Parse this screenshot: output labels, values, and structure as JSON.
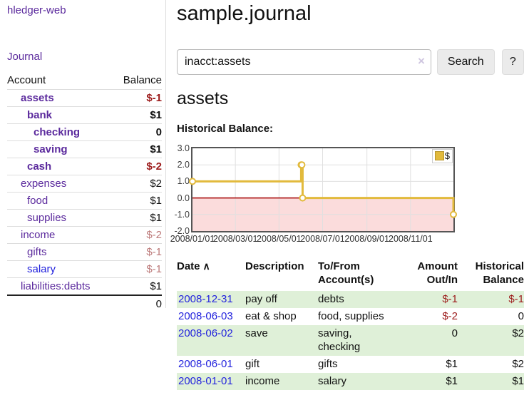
{
  "colors": {
    "link_purple": "#5b2a9d",
    "link_blue": "#2323dd",
    "negative_strong": "#9c1b1b",
    "negative_dim": "#bd7b7b",
    "row_shade_green": "#dff0d8",
    "chart_line_gold": "#e2ba3c",
    "chart_negative_region_pink": "#fbdcdc",
    "chart_zero_line_red": "#a40000"
  },
  "sidebar": {
    "app_title": "hledger-web",
    "journal_label": "Journal",
    "accounts": {
      "headers": [
        "Account",
        "Balance"
      ],
      "rows": [
        {
          "name": "assets",
          "balance": "$-1",
          "indent": 1,
          "bold": true,
          "balance_color": "negative-strong"
        },
        {
          "name": "bank",
          "balance": "$1",
          "indent": 2,
          "bold": true,
          "balance_color": "default"
        },
        {
          "name": "checking",
          "balance": "0",
          "indent": 3,
          "bold": true,
          "balance_color": "default"
        },
        {
          "name": "saving",
          "balance": "$1",
          "indent": 3,
          "bold": true,
          "balance_color": "default"
        },
        {
          "name": "cash",
          "balance": "$-2",
          "indent": 2,
          "bold": true,
          "balance_color": "negative-strong"
        },
        {
          "name": "expenses",
          "balance": "$2",
          "indent": 1,
          "bold": false,
          "balance_color": "default"
        },
        {
          "name": "food",
          "balance": "$1",
          "indent": 2,
          "bold": false,
          "balance_color": "default"
        },
        {
          "name": "supplies",
          "balance": "$1",
          "indent": 2,
          "bold": false,
          "balance_color": "default"
        },
        {
          "name": "income",
          "balance": "$-2",
          "indent": 1,
          "bold": false,
          "balance_color": "negative-dim"
        },
        {
          "name": "gifts",
          "balance": "$-1",
          "indent": 2,
          "bold": false,
          "balance_color": "negative-dim"
        },
        {
          "name": "salary",
          "balance": "$-1",
          "indent": 2,
          "bold": false,
          "balance_color": "negative-dim",
          "link_style": "blue"
        },
        {
          "name": "liabilities:debts",
          "balance": "$1",
          "indent": 1,
          "bold": false,
          "balance_color": "default"
        }
      ],
      "total": "0"
    }
  },
  "main": {
    "title": "sample.journal",
    "search": {
      "value": "inacct:assets",
      "clear_icon": "×",
      "button_label": "Search",
      "help_label": "?"
    },
    "account_heading": "assets",
    "chart_label": "Historical Balance:"
  },
  "chart_data": {
    "type": "line",
    "step": true,
    "title": "Historical Balance",
    "series": [
      {
        "name": "$",
        "points": [
          [
            "2008-01-01",
            1
          ],
          [
            "2008-06-01",
            2
          ],
          [
            "2008-06-02",
            2
          ],
          [
            "2008-06-03",
            0
          ],
          [
            "2008-12-31",
            -1
          ]
        ]
      }
    ],
    "xlim": [
      "2008-01-01",
      "2008-12-31"
    ],
    "ylim": [
      -2,
      3
    ],
    "yticks": [
      "3.0",
      "2.0",
      "1.0",
      "0.0",
      "-1.0",
      "-2.0"
    ],
    "xticks": [
      "2008/01/01",
      "2008/03/01",
      "2008/05/01",
      "2008/07/01",
      "2008/09/01",
      "2008/11/01"
    ],
    "legend": {
      "label": "$",
      "position": "top-right"
    },
    "negative_region_shaded": true,
    "grid": true
  },
  "transactions": {
    "headers": [
      "Date",
      "Description",
      "To/From Account(s)",
      "Amount Out/In",
      "Historical Balance"
    ],
    "sort_indicator": "∧",
    "rows": [
      {
        "date": "2008-12-31",
        "description": "pay off",
        "accounts": "debts",
        "amount": "$-1",
        "balance": "$-1",
        "amount_neg": true,
        "balance_neg": true,
        "shaded": true
      },
      {
        "date": "2008-06-03",
        "description": "eat & shop",
        "accounts": "food, supplies",
        "amount": "$-2",
        "balance": "0",
        "amount_neg": true,
        "balance_neg": false,
        "shaded": false
      },
      {
        "date": "2008-06-02",
        "description": "save",
        "accounts": "saving, checking",
        "amount": "0",
        "balance": "$2",
        "amount_neg": false,
        "balance_neg": false,
        "shaded": true
      },
      {
        "date": "2008-06-01",
        "description": "gift",
        "accounts": "gifts",
        "amount": "$1",
        "balance": "$2",
        "amount_neg": false,
        "balance_neg": false,
        "shaded": false
      },
      {
        "date": "2008-01-01",
        "description": "income",
        "accounts": "salary",
        "amount": "$1",
        "balance": "$1",
        "amount_neg": false,
        "balance_neg": false,
        "shaded": true
      }
    ]
  }
}
